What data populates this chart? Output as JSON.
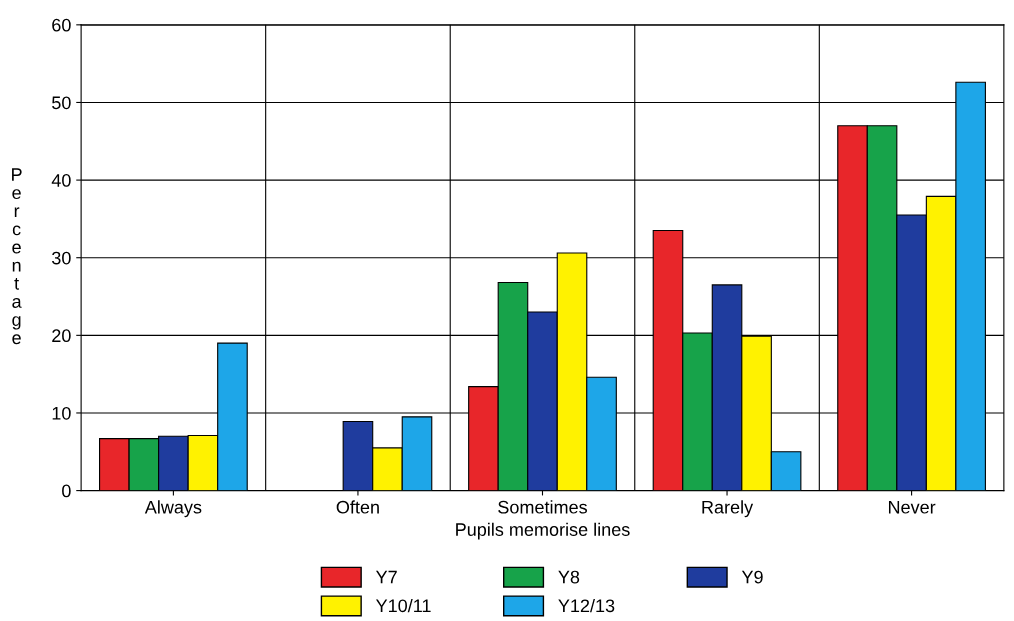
{
  "chart_data": {
    "type": "bar",
    "xlabel": "Pupils memorise lines",
    "ylabel": "Percentage",
    "categories": [
      "Always",
      "Often",
      "Sometimes",
      "Rarely",
      "Never"
    ],
    "series": [
      {
        "name": "Y7",
        "color": "#e8262a",
        "values": [
          6.7,
          null,
          13.4,
          33.5,
          47
        ]
      },
      {
        "name": "Y8",
        "color": "#17a34a",
        "values": [
          6.7,
          null,
          26.8,
          20.3,
          47
        ]
      },
      {
        "name": "Y9",
        "color": "#1f3c9e",
        "values": [
          7.0,
          8.9,
          23.0,
          26.5,
          35.5
        ]
      },
      {
        "name": "Y10/11",
        "color": "#fff200",
        "values": [
          7.1,
          5.5,
          30.6,
          19.9,
          37.9
        ]
      },
      {
        "name": "Y12/13",
        "color": "#1ea6e8",
        "values": [
          19.0,
          9.5,
          14.6,
          5.0,
          52.6
        ]
      }
    ],
    "ylim": [
      0,
      60
    ],
    "yticks": [
      0,
      10,
      20,
      30,
      40,
      50,
      60
    ],
    "grid": true,
    "legend": "bottom"
  }
}
